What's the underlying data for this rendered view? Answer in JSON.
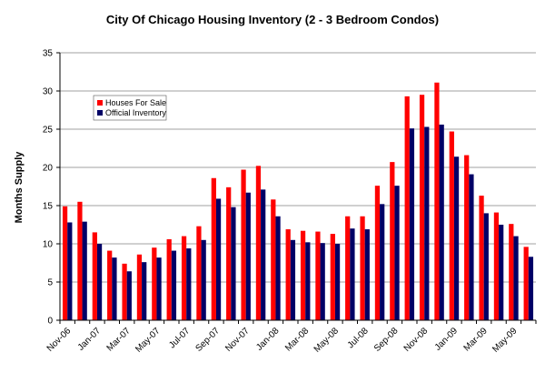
{
  "chart_data": {
    "type": "bar",
    "title": "City Of Chicago Housing Inventory (2 - 3 Bedroom Condos)",
    "xlabel": "",
    "ylabel": "Months Supply",
    "ylim": [
      0,
      35
    ],
    "yticks": [
      0,
      5,
      10,
      15,
      20,
      25,
      30,
      35
    ],
    "grid": true,
    "legend_position": "top-left",
    "categories": [
      "Nov-06",
      "Dec-06",
      "Jan-07",
      "Feb-07",
      "Mar-07",
      "Apr-07",
      "May-07",
      "Jun-07",
      "Jul-07",
      "Aug-07",
      "Sep-07",
      "Oct-07",
      "Nov-07",
      "Dec-07",
      "Jan-08",
      "Feb-08",
      "Mar-08",
      "Apr-08",
      "May-08",
      "Jun-08",
      "Jul-08",
      "Aug-08",
      "Sep-08",
      "Oct-08",
      "Nov-08",
      "Dec-08",
      "Jan-09",
      "Feb-09",
      "Mar-09",
      "Apr-09",
      "May-09",
      "Jun-09"
    ],
    "x_tick_labels": [
      "Nov-06",
      "Jan-07",
      "Mar-07",
      "May-07",
      "Jul-07",
      "Sep-07",
      "Nov-07",
      "Jan-08",
      "Mar-08",
      "May-08",
      "Jul-08",
      "Sep-08",
      "Nov-08",
      "Jan-09",
      "Mar-09",
      "May-09"
    ],
    "series": [
      {
        "name": "Houses For Sale",
        "color": "#ff0000",
        "values": [
          14.9,
          15.5,
          11.5,
          9.1,
          7.4,
          8.6,
          9.5,
          10.6,
          11.0,
          12.3,
          18.6,
          17.4,
          19.7,
          20.2,
          15.8,
          11.9,
          11.7,
          11.6,
          11.3,
          13.6,
          13.6,
          17.6,
          20.7,
          29.3,
          29.5,
          31.1,
          24.7,
          21.6,
          16.3,
          14.1,
          12.6,
          9.6
        ]
      },
      {
        "name": "Official Inventory",
        "color": "#000066",
        "values": [
          12.8,
          12.9,
          10.0,
          8.2,
          6.4,
          7.6,
          8.2,
          9.1,
          9.4,
          10.5,
          15.9,
          14.8,
          16.7,
          17.1,
          13.6,
          10.5,
          10.2,
          10.1,
          10.0,
          12.0,
          11.9,
          15.2,
          17.6,
          25.1,
          25.3,
          25.6,
          21.4,
          19.1,
          14.0,
          12.5,
          11.0,
          8.3
        ]
      }
    ]
  }
}
